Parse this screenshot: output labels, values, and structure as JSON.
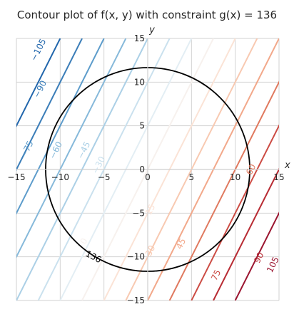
{
  "chart_data": {
    "type": "contour",
    "title": "Contour plot of f(x, y) with constraint g(x) = 136",
    "xlabel": "x",
    "ylabel": "y",
    "xlim": [
      -15,
      15
    ],
    "ylim": [
      -15,
      15
    ],
    "xticks": [
      -15,
      -10,
      -5,
      0,
      5,
      10,
      15
    ],
    "yticks": [
      -15,
      -10,
      -5,
      0,
      5,
      10,
      15
    ],
    "grid": true,
    "function": {
      "x_coefficient": 6,
      "y_coefficient": -3
    },
    "levels": [
      -105,
      -90,
      -75,
      -60,
      -45,
      -30,
      -15,
      0,
      15,
      30,
      45,
      60,
      75,
      90,
      105
    ],
    "level_colors": {
      "-105": "#2166ac",
      "-90": "#3a7db8",
      "-75": "#5d9ccb",
      "-60": "#86b9da",
      "-45": "#abd0e6",
      "-30": "#cae1ee",
      "-15": "#e3eef4",
      "0": "#f7f1ee",
      "15": "#fbe3d6",
      "30": "#f8c9b1",
      "45": "#f2a88a",
      "60": "#e0795f",
      "75": "#cc4c44",
      "90": "#b82b33",
      "105": "#9b1530"
    },
    "contour_labels": [
      {
        "level": -105,
        "text": "−105",
        "x": -12.5,
        "y": 13.7
      },
      {
        "level": -90,
        "text": "−90",
        "x": -12.3,
        "y": 9.2
      },
      {
        "level": -75,
        "text": "−75",
        "x": -13.8,
        "y": 2.3
      },
      {
        "level": -60,
        "text": "−60",
        "x": -10.5,
        "y": 2.2
      },
      {
        "level": -45,
        "text": "−45",
        "x": -7.3,
        "y": 2.2
      },
      {
        "level": -30,
        "text": "−30",
        "x": -5.6,
        "y": 0.5
      },
      {
        "level": 0,
        "text": "0",
        "x": -7.3,
        "y": -8.2
      },
      {
        "level": 15,
        "text": "15",
        "x": 0.3,
        "y": -4.6
      },
      {
        "level": 30,
        "text": "30",
        "x": 0.3,
        "y": -9.3
      },
      {
        "level": 45,
        "text": "45",
        "x": 3.8,
        "y": -8.5
      },
      {
        "level": 60,
        "text": "60",
        "x": 11.8,
        "y": 0.0
      },
      {
        "level": 75,
        "text": "75",
        "x": 7.8,
        "y": -12.1
      },
      {
        "level": 90,
        "text": "90",
        "x": 12.7,
        "y": -10.1
      },
      {
        "level": 105,
        "text": "105",
        "x": 14.3,
        "y": -10.9
      }
    ],
    "constraint": {
      "label": "136",
      "radius": 11.66,
      "label_x": -6.2,
      "label_y": -10.0,
      "color": "#000000"
    }
  }
}
